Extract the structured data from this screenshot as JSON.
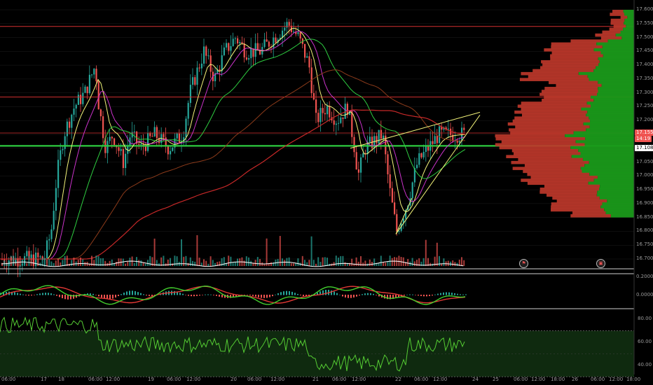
{
  "colors": {
    "background": "#000000",
    "grid": "#1c1c1c",
    "bull": "#26a69a",
    "bear": "#ef5350",
    "level": "#d32f2f",
    "support": "#2ecc40",
    "wedge": "#f4f47a",
    "ema_fast": "#f4f47a",
    "ema_mid": "#cc33cc",
    "ema_slow": "#2ecc40",
    "ema_long": "#8b3a1a",
    "ema_longest": "#c62828",
    "vp_up": "#1a9a1a",
    "vp_down": "#c0392b",
    "osc_bg": "#0f2a0f",
    "rsi_line": "#55cc33"
  },
  "price_axis": {
    "ticks": [
      "17.60000",
      "17.55000",
      "17.50000",
      "17.45000",
      "17.40000",
      "17.35000",
      "17.30000",
      "17.25000",
      "17.20000",
      "17.15000",
      "17.10000",
      "17.05000",
      "17.00000",
      "16.95000",
      "16.90000",
      "16.85000",
      "16.80000",
      "16.75000",
      "16.70000"
    ],
    "current_price": "17.15536",
    "countdown": "14:19",
    "support_price": "17.10860"
  },
  "macd_axis": {
    "ticks": [
      "0.20000",
      "0.00000"
    ]
  },
  "rsi_axis": {
    "ticks": [
      "80.00",
      "60.00",
      "40.00"
    ]
  },
  "time_axis": {
    "ticks": [
      "06:00",
      "17",
      "18",
      "06:00",
      "12:00",
      "19",
      "06:00",
      "12:00",
      "20",
      "06:00",
      "12:00",
      "21",
      "06:00",
      "12:00",
      "22",
      "06:00",
      "12:00",
      "24",
      "25",
      "06:00",
      "12:00",
      "18:00",
      "26",
      "06:00",
      "12:00",
      "18:00"
    ]
  },
  "event_icons": [
    {
      "name": "event-flag-icon",
      "glyph": "⚑"
    },
    {
      "name": "event-calendar-icon",
      "glyph": "▣"
    }
  ],
  "levels": {
    "resistance_1": 17.54,
    "resistance_2": 17.285,
    "resistance_3": 17.155,
    "support": 17.1086
  }
}
